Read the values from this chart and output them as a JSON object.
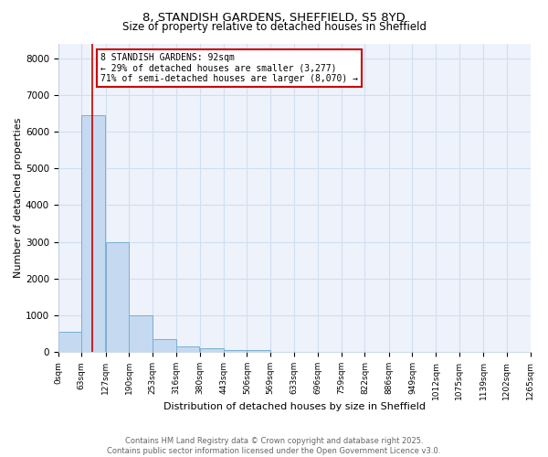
{
  "title1": "8, STANDISH GARDENS, SHEFFIELD, S5 8YD",
  "title2": "Size of property relative to detached houses in Sheffield",
  "xlabel": "Distribution of detached houses by size in Sheffield",
  "ylabel": "Number of detached properties",
  "bar_color": "#c5d9f0",
  "bar_edge_color": "#7aafd4",
  "bins": [
    0,
    63,
    127,
    190,
    253,
    316,
    380,
    443,
    506,
    569,
    633,
    696,
    759,
    822,
    886,
    949,
    1012,
    1075,
    1139,
    1202,
    1265
  ],
  "bin_labels": [
    "0sqm",
    "63sqm",
    "127sqm",
    "190sqm",
    "253sqm",
    "316sqm",
    "380sqm",
    "443sqm",
    "506sqm",
    "569sqm",
    "633sqm",
    "696sqm",
    "759sqm",
    "822sqm",
    "886sqm",
    "949sqm",
    "1012sqm",
    "1075sqm",
    "1139sqm",
    "1202sqm",
    "1265sqm"
  ],
  "counts": [
    550,
    6450,
    3000,
    1000,
    350,
    170,
    100,
    60,
    50,
    0,
    0,
    0,
    0,
    0,
    0,
    0,
    0,
    0,
    0,
    0
  ],
  "property_size": 92,
  "vline_color": "#cc0000",
  "annotation_line1": "8 STANDISH GARDENS: 92sqm",
  "annotation_line2": "← 29% of detached houses are smaller (3,277)",
  "annotation_line3": "71% of semi-detached houses are larger (8,070) →",
  "annotation_box_color": "#cc0000",
  "ylim": [
    0,
    8400
  ],
  "yticks": [
    0,
    1000,
    2000,
    3000,
    4000,
    5000,
    6000,
    7000,
    8000
  ],
  "footer_text": "Contains HM Land Registry data © Crown copyright and database right 2025.\nContains public sector information licensed under the Open Government Licence v3.0.",
  "grid_color": "#d0dff0",
  "background_color": "#eef2fb"
}
